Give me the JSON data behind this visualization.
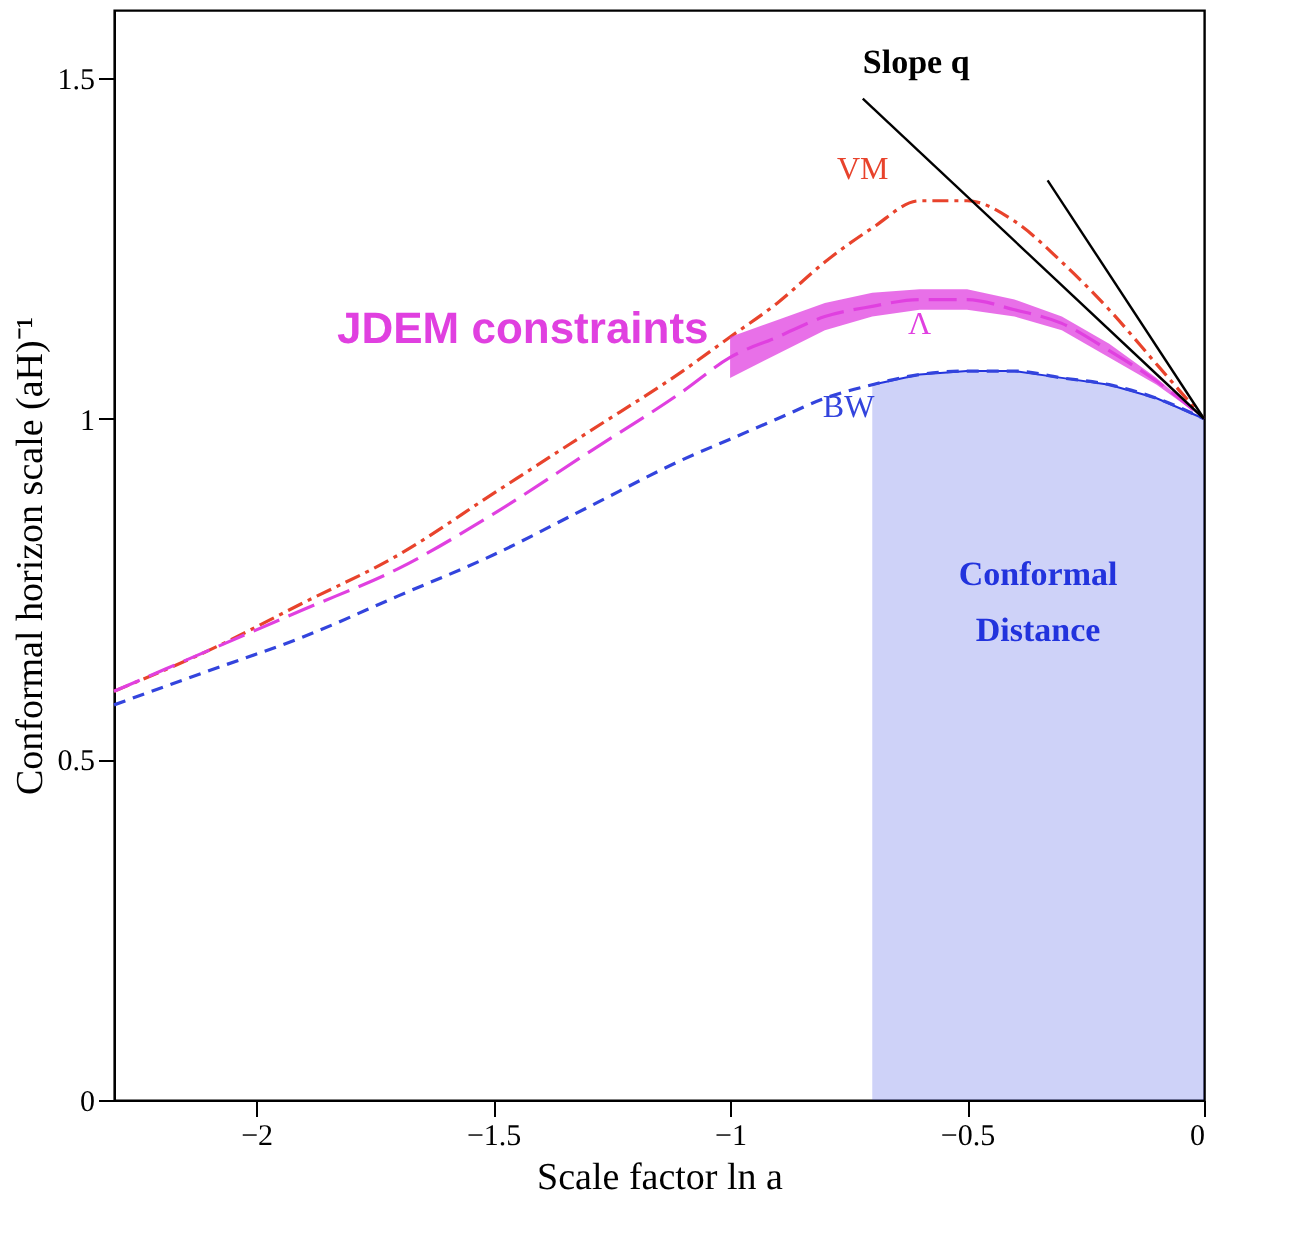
{
  "chart_data": {
    "type": "line",
    "xlabel": "Scale factor ln a",
    "ylabel": "Conformal horizon scale (aH)⁻¹",
    "x": [
      -2.3,
      -2.1,
      -1.9,
      -1.7,
      -1.5,
      -1.3,
      -1.1,
      -1.0,
      -0.9,
      -0.8,
      -0.7,
      -0.6,
      -0.5,
      -0.4,
      -0.3,
      -0.2,
      -0.1,
      0
    ],
    "series": [
      {
        "name": "Conformal Distance",
        "type": "area",
        "color": "#2233dd",
        "x": [
          -0.7,
          -0.6,
          -0.5,
          -0.4,
          -0.3,
          -0.2,
          -0.1,
          0
        ],
        "values": [
          1.05,
          1.065,
          1.07,
          1.07,
          1.06,
          1.05,
          1.03,
          1.0
        ]
      },
      {
        "name": "VM",
        "color": "#e8432c",
        "line_style": "dashed",
        "values": [
          0.6,
          0.66,
          0.73,
          0.8,
          0.89,
          0.98,
          1.07,
          1.12,
          1.17,
          1.23,
          1.28,
          1.32,
          1.32,
          1.29,
          1.23,
          1.16,
          1.08,
          1.0
        ]
      },
      {
        "name": "Λ",
        "color": "#e040e0",
        "line_style": "dashed",
        "values": [
          0.6,
          0.66,
          0.72,
          0.78,
          0.86,
          0.95,
          1.04,
          1.09,
          1.12,
          1.15,
          1.165,
          1.175,
          1.175,
          1.16,
          1.14,
          1.1,
          1.055,
          1.0
        ],
        "lower": [
          null,
          null,
          null,
          null,
          null,
          null,
          null,
          1.06,
          1.095,
          1.13,
          1.15,
          1.16,
          1.16,
          1.15,
          1.13,
          1.09,
          1.05,
          1.0
        ],
        "upper": [
          null,
          null,
          null,
          null,
          null,
          null,
          null,
          1.12,
          1.145,
          1.17,
          1.185,
          1.19,
          1.19,
          1.175,
          1.15,
          1.11,
          1.06,
          1.0
        ]
      },
      {
        "name": "BW",
        "color": "#3344dd",
        "line_style": "dashed",
        "values": [
          0.58,
          0.63,
          0.68,
          0.74,
          0.8,
          0.87,
          0.94,
          0.97,
          1.0,
          1.03,
          1.05,
          1.065,
          1.07,
          1.07,
          1.06,
          1.05,
          1.03,
          1.0
        ]
      },
      {
        "color": "#000000",
        "line_style": "solid",
        "x": [
          -0.72,
          0
        ],
        "values": [
          1.47,
          1.0
        ]
      },
      {
        "color": "#000000",
        "line_style": "solid",
        "x": [
          -0.33,
          0
        ],
        "values": [
          1.35,
          1.0
        ]
      }
    ],
    "annotations": [
      "Slope q",
      {
        "text": "JDEM constraints",
        "x": -1.02,
        "y": 1.09
      }
    ],
    "xlim": [
      -2.3,
      0
    ],
    "ylim": [
      0,
      1.6
    ],
    "xticks": [
      -2,
      -1.5,
      -1,
      -0.5,
      0
    ],
    "yticks": [
      0,
      0.5,
      1,
      1.5
    ],
    "grid": false,
    "marker": "none"
  }
}
